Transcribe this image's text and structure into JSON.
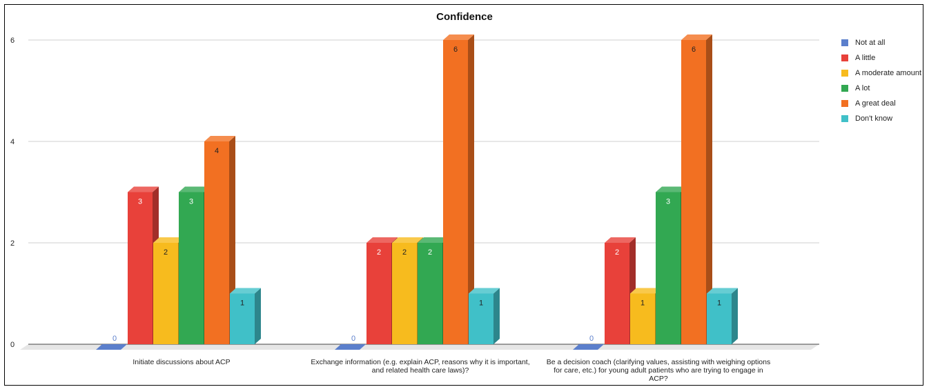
{
  "chart_data": {
    "type": "bar",
    "title": "Confidence",
    "xlabel": "",
    "ylabel": "",
    "ylim": [
      0,
      6
    ],
    "yticks": [
      0,
      2,
      4,
      6
    ],
    "grid": true,
    "legend_position": "right",
    "style": "3d",
    "categories": [
      [
        "Initiate discussions about ACP"
      ],
      [
        "Exchange information (e.g. explain ACP, reasons why it is important,",
        "and related health care laws)?"
      ],
      [
        "Be a decision coach (clarifying values, assisting with weighing options",
        "for care, etc.) for young adult patients who are trying to engage in",
        "ACP?"
      ]
    ],
    "series": [
      {
        "name": "Not at all",
        "color": "#5b7fcc",
        "values": [
          0,
          0,
          0
        ]
      },
      {
        "name": "A little",
        "color": "#e8413a",
        "values": [
          3,
          2,
          2
        ]
      },
      {
        "name": "A moderate amount",
        "color": "#f7bb1e",
        "values": [
          2,
          2,
          1
        ]
      },
      {
        "name": "A lot",
        "color": "#32a852",
        "values": [
          3,
          2,
          3
        ]
      },
      {
        "name": "A great deal",
        "color": "#f27022",
        "values": [
          4,
          6,
          6
        ]
      },
      {
        "name": "Don't know",
        "color": "#40c0c8",
        "values": [
          1,
          1,
          1
        ]
      }
    ]
  }
}
